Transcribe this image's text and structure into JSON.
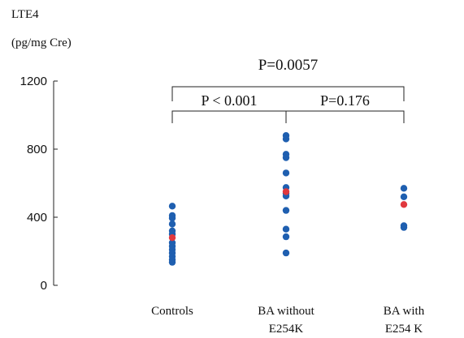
{
  "chart_data": {
    "type": "scatter",
    "ylabel_line1": "LTE4",
    "ylabel_line2": "(pg/mg Cre)",
    "ylim": [
      0,
      1200
    ],
    "yticks": [
      0,
      400,
      800,
      1200
    ],
    "categories": [
      {
        "line1": "Controls",
        "line2": ""
      },
      {
        "line1": "BA without",
        "line2": "E254K"
      },
      {
        "line1": "BA with",
        "line2": "E254 K"
      }
    ],
    "series": [
      {
        "color": "#1f5fb0",
        "points": [
          {
            "group": 0,
            "y": 465
          },
          {
            "group": 0,
            "y": 410
          },
          {
            "group": 0,
            "y": 395
          },
          {
            "group": 0,
            "y": 360
          },
          {
            "group": 0,
            "y": 320
          },
          {
            "group": 0,
            "y": 300
          },
          {
            "group": 0,
            "y": 250
          },
          {
            "group": 0,
            "y": 230
          },
          {
            "group": 0,
            "y": 210
          },
          {
            "group": 0,
            "y": 190
          },
          {
            "group": 0,
            "y": 170
          },
          {
            "group": 0,
            "y": 150
          },
          {
            "group": 0,
            "y": 135
          },
          {
            "group": 1,
            "y": 880
          },
          {
            "group": 1,
            "y": 860
          },
          {
            "group": 1,
            "y": 770
          },
          {
            "group": 1,
            "y": 750
          },
          {
            "group": 1,
            "y": 660
          },
          {
            "group": 1,
            "y": 575
          },
          {
            "group": 1,
            "y": 540
          },
          {
            "group": 1,
            "y": 525
          },
          {
            "group": 1,
            "y": 440
          },
          {
            "group": 1,
            "y": 330
          },
          {
            "group": 1,
            "y": 285
          },
          {
            "group": 1,
            "y": 190
          },
          {
            "group": 2,
            "y": 570
          },
          {
            "group": 2,
            "y": 520
          },
          {
            "group": 2,
            "y": 350
          },
          {
            "group": 2,
            "y": 340
          }
        ]
      },
      {
        "color": "#e0383e",
        "points": [
          {
            "group": 0,
            "y": 280
          },
          {
            "group": 1,
            "y": 550
          },
          {
            "group": 2,
            "y": 475
          }
        ]
      }
    ],
    "annotations": [
      {
        "text": "P=0.0057",
        "from": 0,
        "to": 2,
        "level": "upper"
      },
      {
        "text": "P < 0.001",
        "from": 0,
        "to": 1,
        "level": "lower"
      },
      {
        "text": "P=0.176",
        "from": 1,
        "to": 2,
        "level": "lower"
      }
    ]
  }
}
